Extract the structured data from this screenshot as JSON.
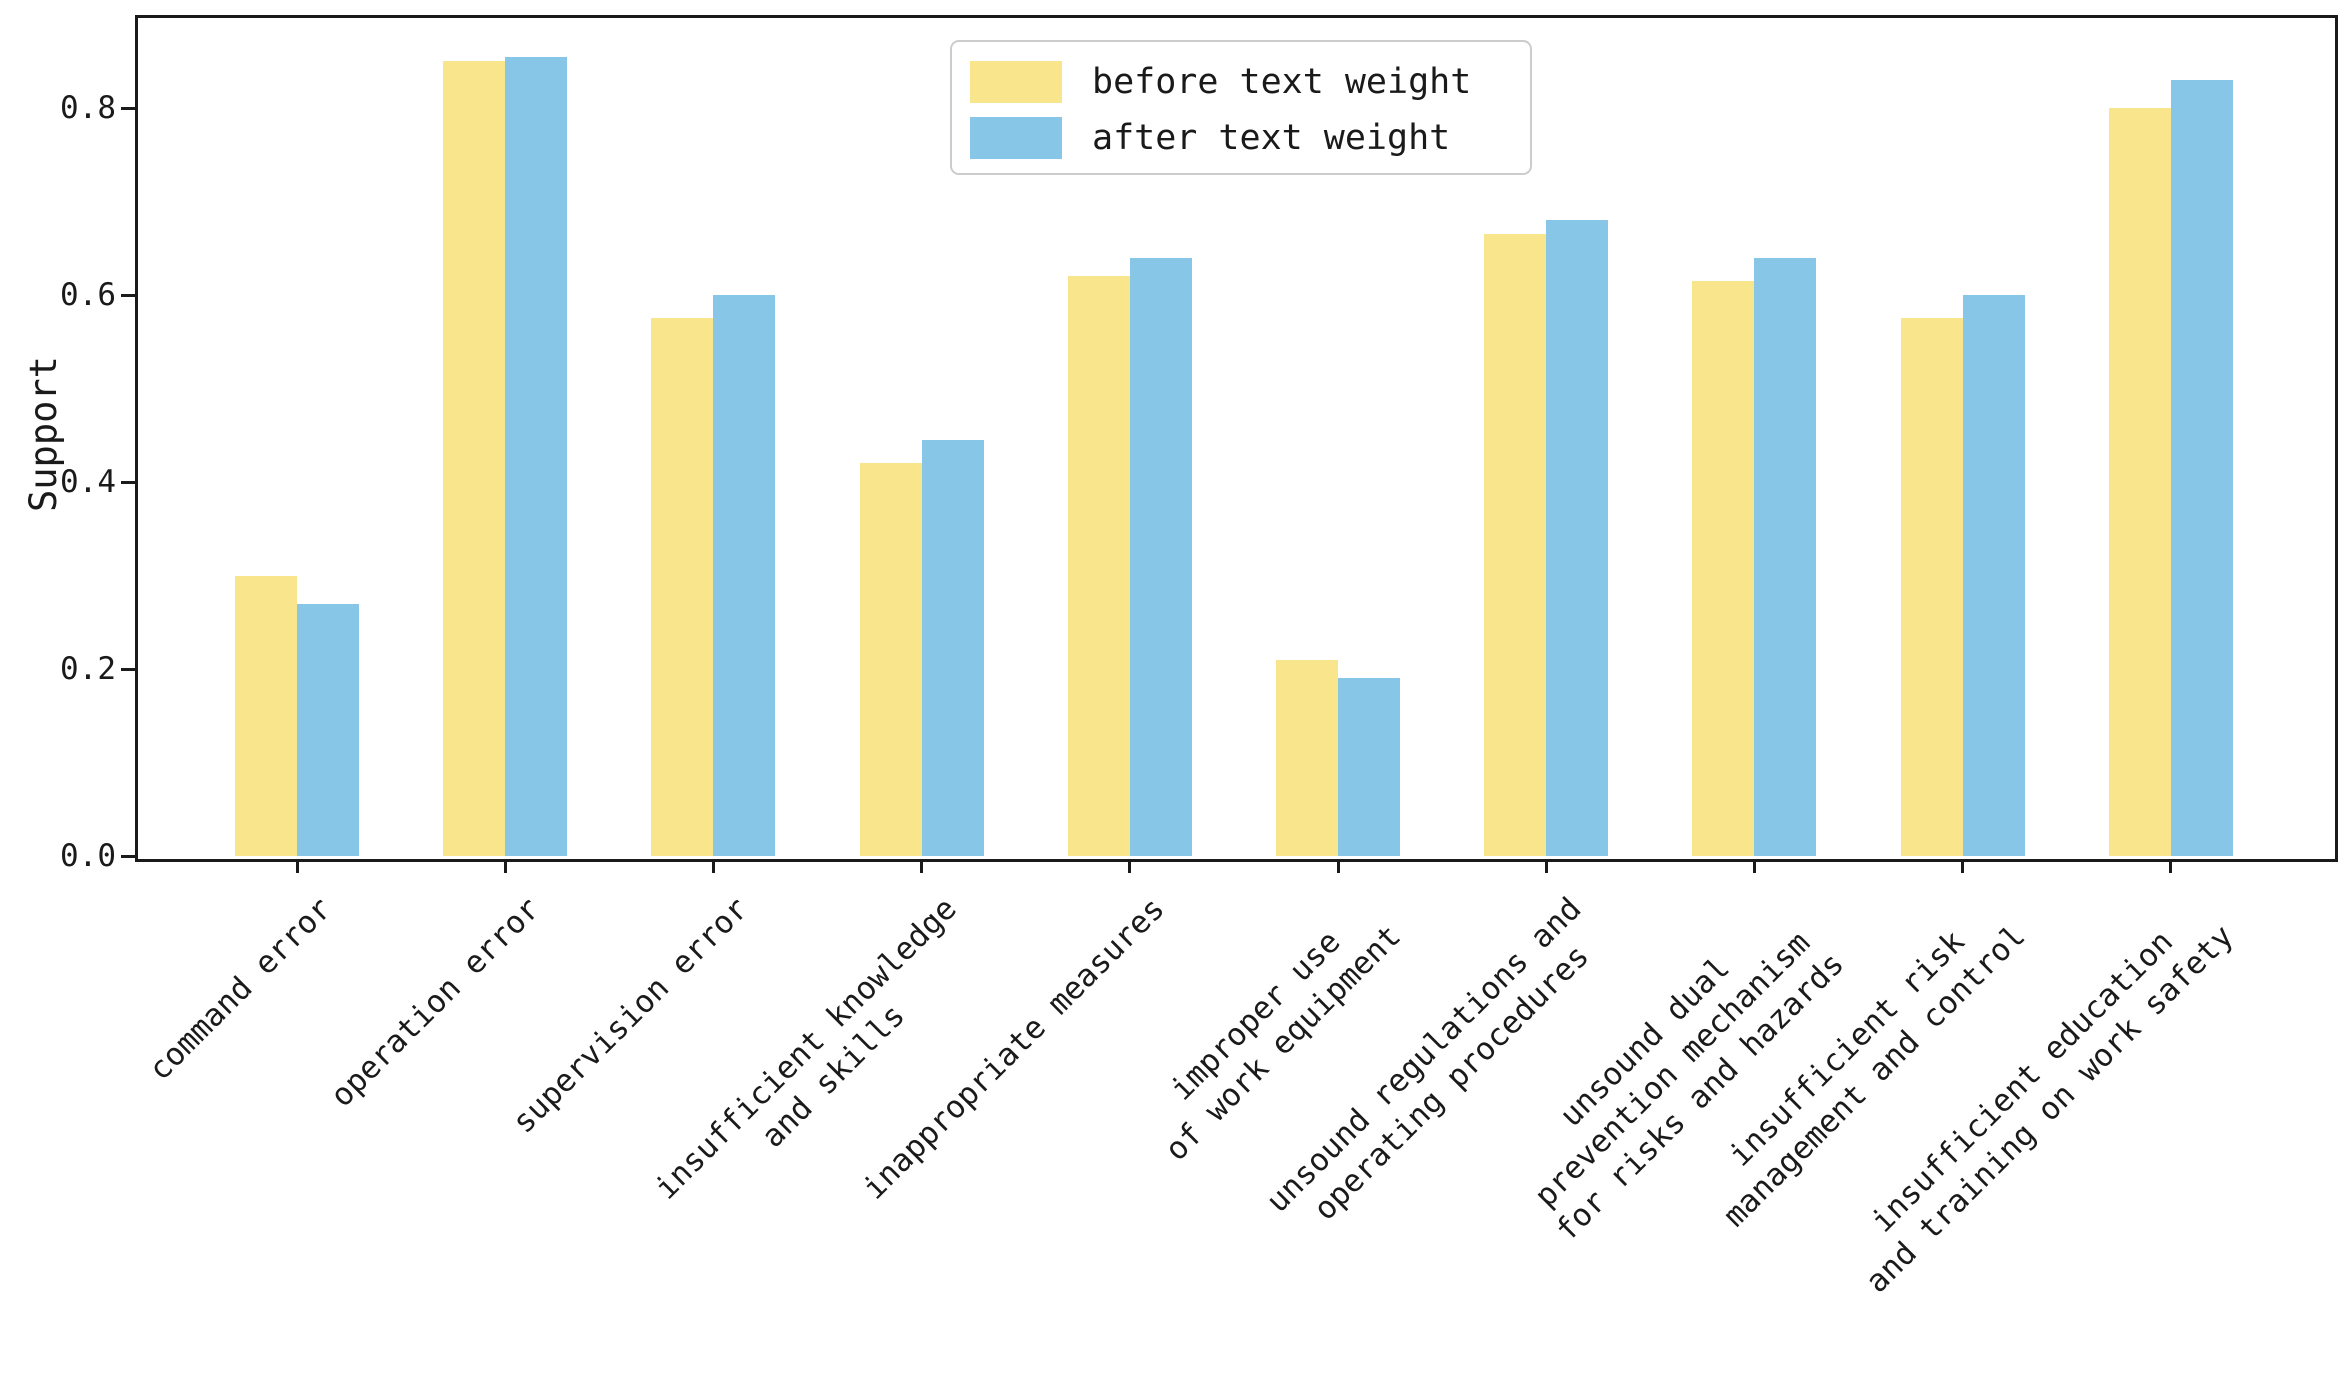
{
  "figure": {
    "background": "#ffffff",
    "axis_color": "#1a1a1a"
  },
  "chart_data": {
    "type": "bar",
    "title": "",
    "xlabel": "",
    "ylabel": "Support",
    "ylim": [
      0,
      0.9
    ],
    "y_ticks": [
      0.0,
      0.2,
      0.4,
      0.6,
      0.8
    ],
    "grid": false,
    "legend_position": "upper center",
    "categories": [
      "command error",
      "operation error",
      "supervision error",
      "insufficient knowledge and skills",
      "inappropriate measures",
      "improper use of work equipment",
      "unsound regulations and operating procedures",
      "unsound dual prevention mechanism for risks and hazards",
      "insufficient risk management and control",
      "insufficient education and training on work safety"
    ],
    "category_tick_lines": [
      [
        "command error"
      ],
      [
        "operation error"
      ],
      [
        "supervision error"
      ],
      [
        "insufficient knowledge",
        "and skills"
      ],
      [
        "inappropriate measures"
      ],
      [
        "improper use",
        "of work equipment"
      ],
      [
        "unsound regulations and",
        "operating procedures"
      ],
      [
        "unsound dual",
        "prevention mechanism",
        "for risks and hazards"
      ],
      [
        "insufficient risk",
        "management and control"
      ],
      [
        "insufficient education",
        "and training on work safety"
      ]
    ],
    "series": [
      {
        "name": "before text weight",
        "color": "#F8E58C",
        "values": [
          0.3,
          0.85,
          0.575,
          0.42,
          0.62,
          0.21,
          0.665,
          0.615,
          0.575,
          0.8
        ]
      },
      {
        "name": "after text weight",
        "color": "#87C6E6",
        "values": [
          0.27,
          0.855,
          0.6,
          0.445,
          0.64,
          0.19,
          0.68,
          0.64,
          0.6,
          0.83
        ]
      }
    ]
  }
}
